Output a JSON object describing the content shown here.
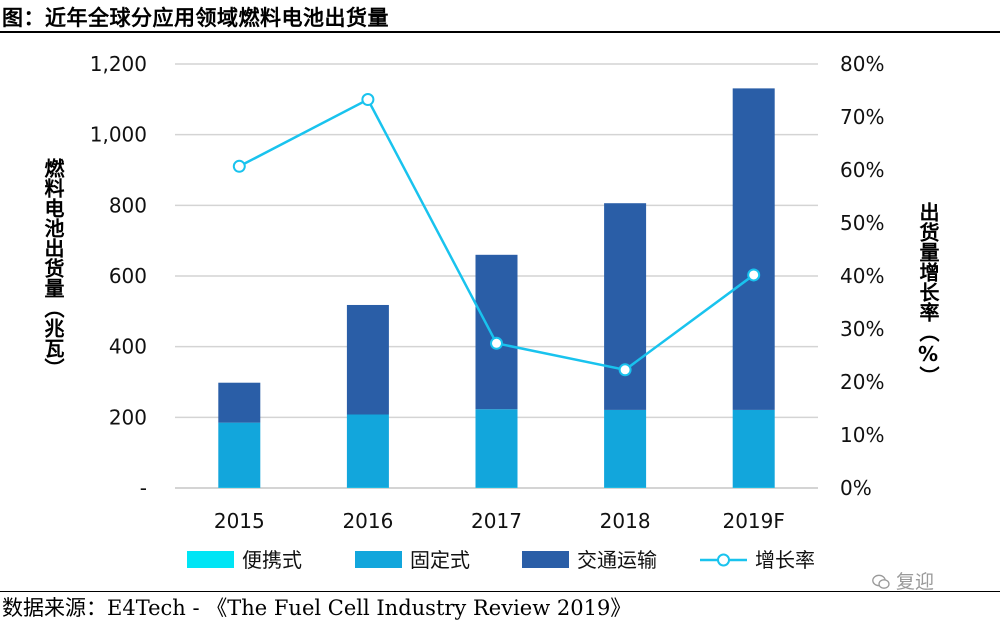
{
  "title": "图：近年全球分应用领域燃料电池出货量",
  "source": "数据来源：E4Tech - 《The Fuel Cell Industry Review 2019》",
  "watermark": "复迎",
  "chart_data": {
    "type": "bar",
    "stacked": true,
    "categories": [
      "2015",
      "2016",
      "2017",
      "2018",
      "2019F"
    ],
    "ylabel": "燃料电池出货量（兆瓦）",
    "y2label": "出货量增长率（%）",
    "ylim": [
      0,
      1200
    ],
    "y2lim": [
      0,
      80
    ],
    "yticks": [
      "-",
      "200",
      "400",
      "600",
      "800",
      "1,000",
      "1,200"
    ],
    "y2ticks": [
      "0%",
      "10%",
      "20%",
      "30%",
      "40%",
      "50%",
      "60%",
      "70%",
      "80%"
    ],
    "grid": true,
    "legend_position": "bottom",
    "series": [
      {
        "name": "便携式",
        "type": "bar",
        "color": "#00e5f5",
        "values": [
          1,
          1,
          1,
          1,
          1
        ]
      },
      {
        "name": "固定式",
        "type": "bar",
        "color": "#12a6dc",
        "values": [
          184,
          207,
          222,
          220,
          220
        ]
      },
      {
        "name": "交通运输",
        "type": "bar",
        "color": "#2a5ea7",
        "values": [
          113,
          310,
          437,
          585,
          910
        ]
      },
      {
        "name": "增长率",
        "type": "line",
        "axis": "right",
        "color": "#19c3ee",
        "values": [
          60.7,
          73.3,
          27.3,
          22.3,
          40.2
        ]
      }
    ]
  }
}
